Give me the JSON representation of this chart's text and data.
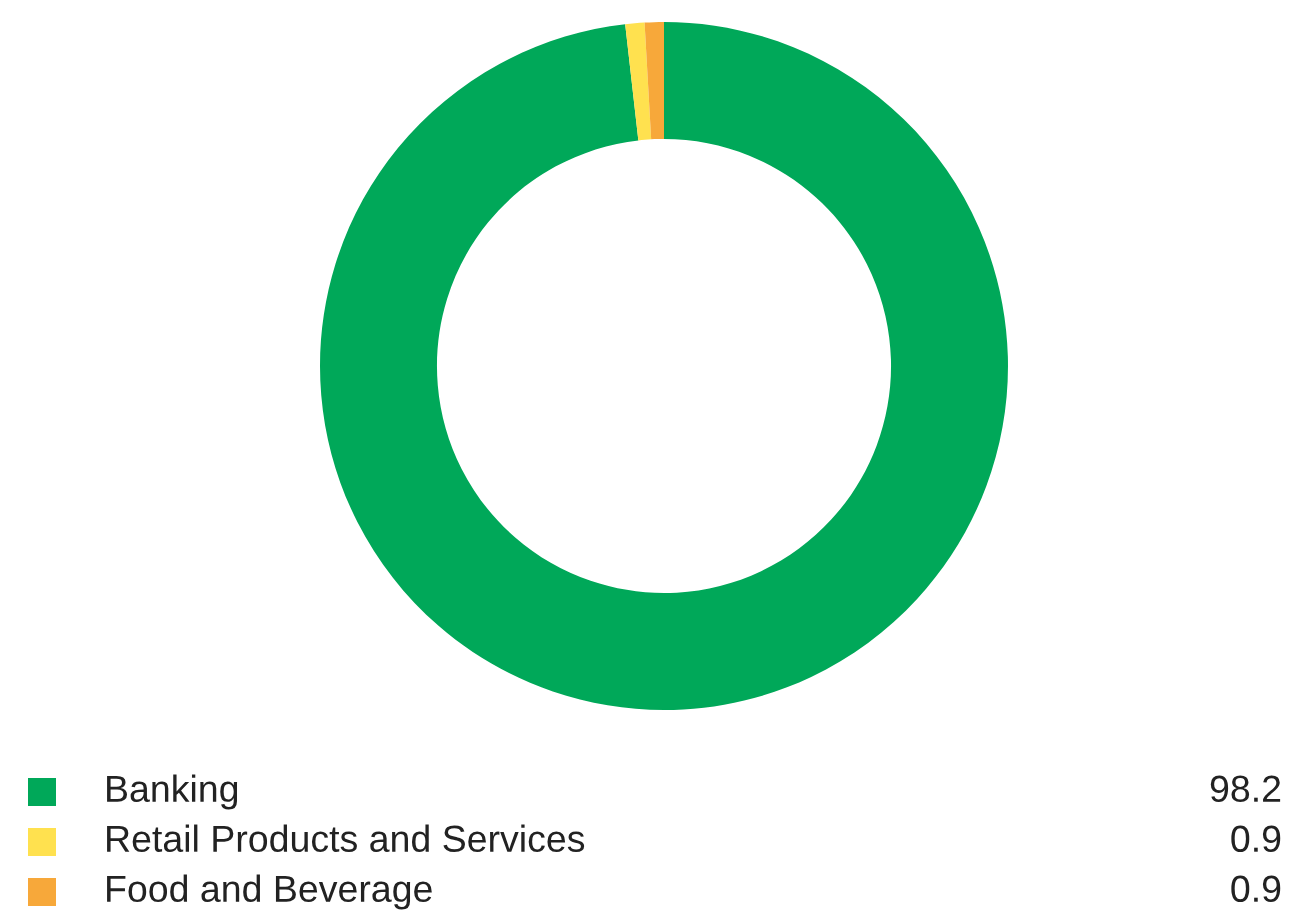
{
  "chart_data": {
    "type": "donut",
    "categories": [
      "Banking",
      "Retail Products and Services",
      "Food and Beverage"
    ],
    "values": [
      98.2,
      0.9,
      0.9
    ],
    "colors": [
      "#00a859",
      "#ffe14f",
      "#f7a83a"
    ],
    "legend": "bottom",
    "data_labels": true
  }
}
